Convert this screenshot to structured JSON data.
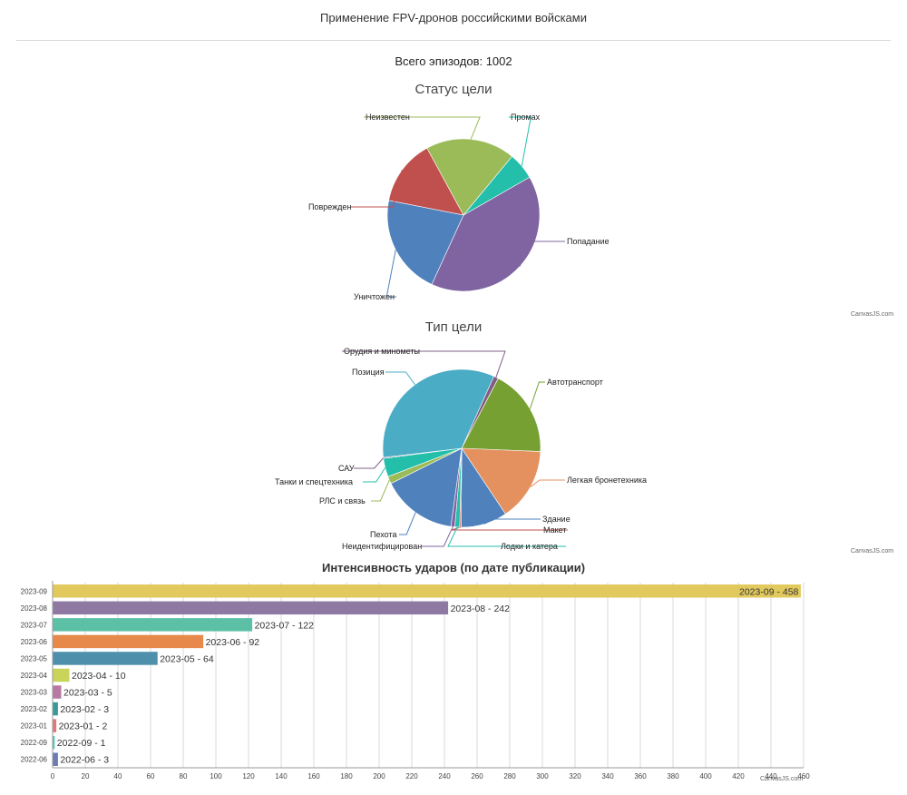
{
  "page": {
    "title": "Применение FPV-дронов российскими войсками",
    "total_label": "Всего эпизодов: 1002",
    "credit": "CanvasJS.com"
  },
  "chart_data": [
    {
      "type": "pie",
      "title": "Статус цели",
      "slices": [
        {
          "label": "Попадание",
          "value": 402,
          "color": "#8064A2"
        },
        {
          "label": "Уничтожен",
          "value": 213,
          "color": "#4F81BC"
        },
        {
          "label": "Поврежден",
          "value": 140,
          "color": "#C0504E"
        },
        {
          "label": "Неизвестен",
          "value": 190,
          "color": "#9BBB58"
        },
        {
          "label": "Промах",
          "value": 57,
          "color": "#23BFAA"
        }
      ]
    },
    {
      "type": "pie",
      "title": "Тип цели",
      "slices": [
        {
          "label": "Орудия и минометы",
          "value": 10,
          "color": "#7F6084"
        },
        {
          "label": "Автотранспорт",
          "value": 180,
          "color": "#77A033"
        },
        {
          "label": "Легкая бронетехника",
          "value": 150,
          "color": "#E5915F"
        },
        {
          "label": "Здание",
          "value": 95,
          "color": "#4F81BC"
        },
        {
          "label": "Макет",
          "value": 3,
          "color": "#C0504E"
        },
        {
          "label": "Лодки и катера",
          "value": 10,
          "color": "#23BFAA"
        },
        {
          "label": "Неидентифицирован",
          "value": 8,
          "color": "#8064A2"
        },
        {
          "label": "Пехота",
          "value": 155,
          "color": "#4F81BC"
        },
        {
          "label": "РЛС и связь",
          "value": 15,
          "color": "#9BBB58"
        },
        {
          "label": "Танки и спецтехника",
          "value": 38,
          "color": "#23BFAA"
        },
        {
          "label": "САУ",
          "value": 2,
          "color": "#7F6084"
        },
        {
          "label": "Позиция",
          "value": 336,
          "color": "#4AACC5"
        }
      ]
    },
    {
      "type": "bar",
      "title": "Интенсивность ударов (по дате публикации)",
      "orientation": "horizontal",
      "xlim": [
        0,
        460
      ],
      "tick_step": 20,
      "bars": [
        {
          "category": "2023-09",
          "value": 458,
          "label": "2023-09 - 458",
          "color": "#E2C95D"
        },
        {
          "category": "2023-08",
          "value": 242,
          "label": "2023-08 - 242",
          "color": "#8F79A3"
        },
        {
          "category": "2023-07",
          "value": 122,
          "label": "2023-07 - 122",
          "color": "#5CC0A6"
        },
        {
          "category": "2023-06",
          "value": 92,
          "label": "2023-06 - 92",
          "color": "#E6894A"
        },
        {
          "category": "2023-05",
          "value": 64,
          "label": "2023-05 - 64",
          "color": "#4E8FAB"
        },
        {
          "category": "2023-04",
          "value": 10,
          "label": "2023-04 - 10",
          "color": "#C8D45A"
        },
        {
          "category": "2023-03",
          "value": 5,
          "label": "2023-03 - 5",
          "color": "#B779A2"
        },
        {
          "category": "2023-02",
          "value": 3,
          "label": "2023-02 - 3",
          "color": "#3A9A9A"
        },
        {
          "category": "2023-01",
          "value": 2,
          "label": "2023-01 - 2",
          "color": "#E07A7A"
        },
        {
          "category": "2022-09",
          "value": 1,
          "label": "2022-09 - 1",
          "color": "#5BC8B8"
        },
        {
          "category": "2022-06",
          "value": 3,
          "label": "2022-06 - 3",
          "color": "#6E7BB5"
        }
      ]
    }
  ]
}
